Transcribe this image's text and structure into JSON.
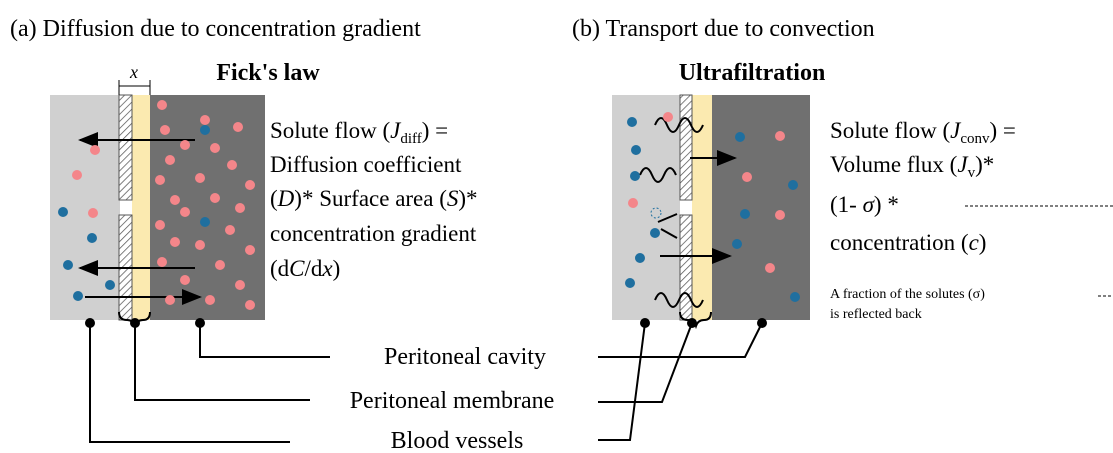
{
  "panels": [
    {
      "label": "(a) Diffusion due to concentration gradient",
      "title": "Fick's law",
      "x_label": "x",
      "formula": [
        [
          "Solute flow (",
          "J",
          "diff",
          ") ="
        ],
        [
          "Diffusion coefficient"
        ],
        [
          "(",
          "D",
          ")* Surface area (",
          "S",
          ")*"
        ],
        [
          "concentration gradient"
        ],
        [
          "(d",
          "C",
          "/d",
          "x",
          ")"
        ]
      ]
    },
    {
      "label": "(b) Transport due to convection",
      "title": "Ultrafiltration",
      "formula": [
        [
          "Solute flow (",
          "J",
          "conv",
          ") ="
        ],
        [
          "Volume flux (",
          "J",
          "v",
          ")*"
        ],
        [
          "(1- ",
          "σ",
          ") *"
        ],
        [
          "concentration (",
          "c",
          ")"
        ]
      ],
      "note": [
        "A fraction of the solutes (σ)",
        "is reflected back"
      ]
    }
  ],
  "legend": [
    "Peritoneal cavity",
    "Peritoneal membrane",
    "Blood vessels"
  ]
}
